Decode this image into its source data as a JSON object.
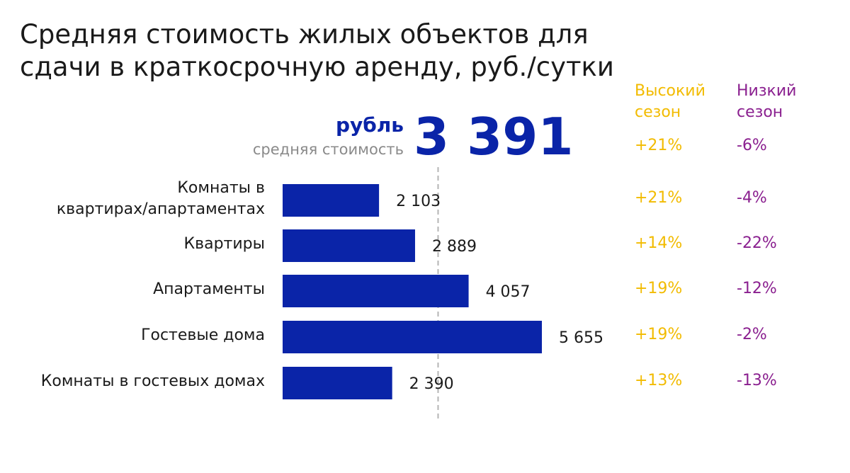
{
  "title_lines": [
    "Средняя стоимость жилых объектов для",
    "сдачи в краткосрочную аренду, руб./сутки"
  ],
  "average": {
    "unit": "рубль",
    "caption": "средняя стоимость",
    "value_label": "3 391",
    "value": 3391,
    "high_season": "+21%",
    "low_season": "-6%"
  },
  "season_headers": {
    "high": [
      "Высокий",
      "сезон"
    ],
    "low": [
      "Низкий",
      "сезон"
    ]
  },
  "colors": {
    "bar": "#0a24a8",
    "high_season": "#f2bb00",
    "low_season": "#8a1f8f",
    "avg_line": "#b5b5b5"
  },
  "chart_data": {
    "type": "bar",
    "orientation": "horizontal",
    "title": "Средняя стоимость жилых объектов для сдачи в краткосрочную аренду, руб./сутки",
    "categories": [
      [
        "Комнаты в",
        "квартирах/апартаментах"
      ],
      [
        "Квартиры"
      ],
      [
        "Апартаменты"
      ],
      [
        "Гостевые дома"
      ],
      [
        "Комнаты в гостевых домах"
      ]
    ],
    "values": [
      2103,
      2889,
      4057,
      5655,
      2390
    ],
    "value_labels": [
      "2 103",
      "2 889",
      "4 057",
      "5 655",
      "2 390"
    ],
    "high_season": [
      "+21%",
      "+14%",
      "+19%",
      "+19%",
      "+13%"
    ],
    "low_season": [
      "-4%",
      "-22%",
      "-12%",
      "-2%",
      "-13%"
    ],
    "reference_line": 3391,
    "grid": false,
    "legend": "none"
  }
}
